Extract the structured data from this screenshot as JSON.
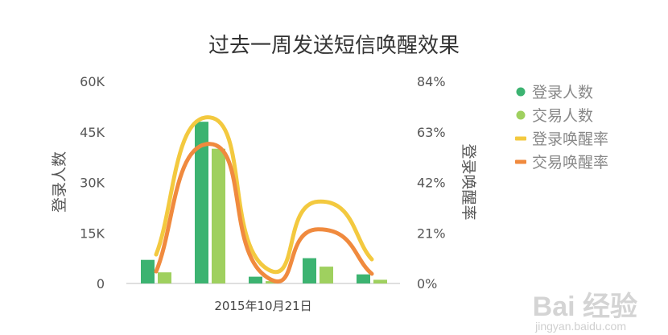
{
  "chart_data": {
    "type": "bar",
    "title": "过去一周发送短信唤醒效果",
    "xlabel": "2015年10月21日",
    "ylabel": "登录人数",
    "y2label": "登录唤醒率",
    "categories": [
      "",
      "",
      "",
      "",
      ""
    ],
    "yticks": [
      "60K",
      "45K",
      "30K",
      "15K",
      "0"
    ],
    "y2ticks": [
      "84%",
      "63%",
      "42%",
      "21%",
      "0%"
    ],
    "ylim": [
      0,
      60000
    ],
    "y2lim": [
      0,
      0.84
    ],
    "grid": false,
    "legend_position": "right",
    "series": [
      {
        "name": "登录人数",
        "kind": "bar",
        "axis": "left",
        "color": "#3cb371",
        "values": [
          7000,
          48000,
          2000,
          7500,
          2700
        ]
      },
      {
        "name": "交易人数",
        "kind": "bar",
        "axis": "left",
        "color": "#9fd05f",
        "values": [
          3300,
          40000,
          700,
          5000,
          1100
        ]
      },
      {
        "name": "登录唤醒率",
        "kind": "line",
        "axis": "right",
        "color": "#f3c93f",
        "values": [
          0.12,
          0.69,
          0.07,
          0.34,
          0.1
        ]
      },
      {
        "name": "交易唤醒率",
        "kind": "line",
        "axis": "right",
        "color": "#f08a3e",
        "values": [
          0.05,
          0.58,
          0.035,
          0.225,
          0.04
        ]
      }
    ]
  },
  "watermark": {
    "logo": "Bai  经验",
    "url": "jingyan.baidu.com"
  }
}
